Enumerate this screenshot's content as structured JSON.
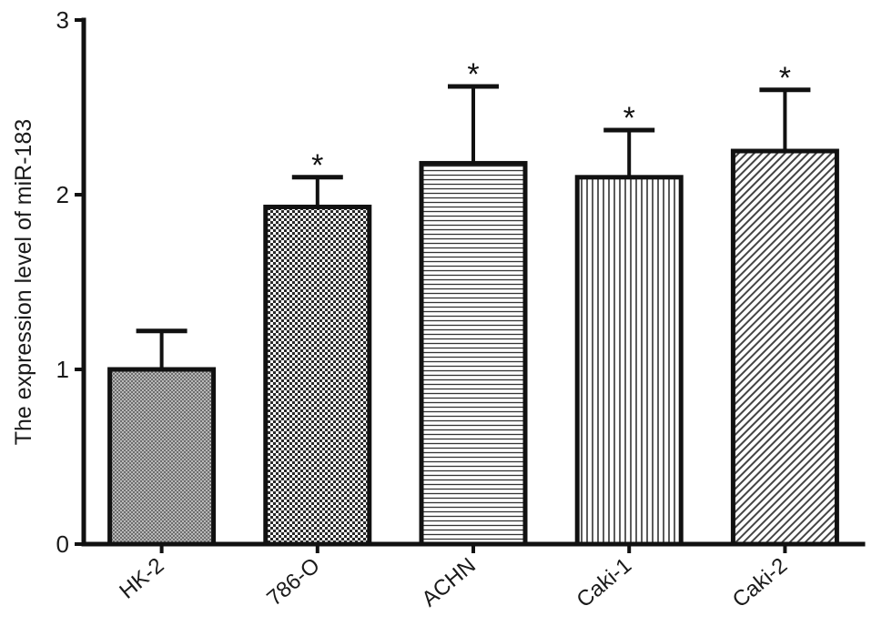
{
  "chart_data": {
    "type": "bar",
    "categories": [
      "HK-2",
      "786-O",
      "ACHN",
      "Caki-1",
      "Caki-2"
    ],
    "values": [
      1.0,
      1.93,
      2.18,
      2.1,
      2.25
    ],
    "errors": [
      0.22,
      0.17,
      0.44,
      0.27,
      0.35
    ],
    "significance": [
      "",
      "*",
      "*",
      "*",
      "*"
    ],
    "patterns": [
      "dense-crosshatch",
      "checker",
      "horizontal-lines",
      "vertical-lines",
      "diagonal-lines"
    ],
    "ylabel": "The expression level of miR-183",
    "xlabel": "",
    "ylim": [
      0,
      3
    ],
    "yticks": [
      0,
      1,
      2,
      3
    ],
    "grid": false,
    "colors": {
      "bar_stroke": "#111111",
      "axis": "#111111"
    }
  }
}
